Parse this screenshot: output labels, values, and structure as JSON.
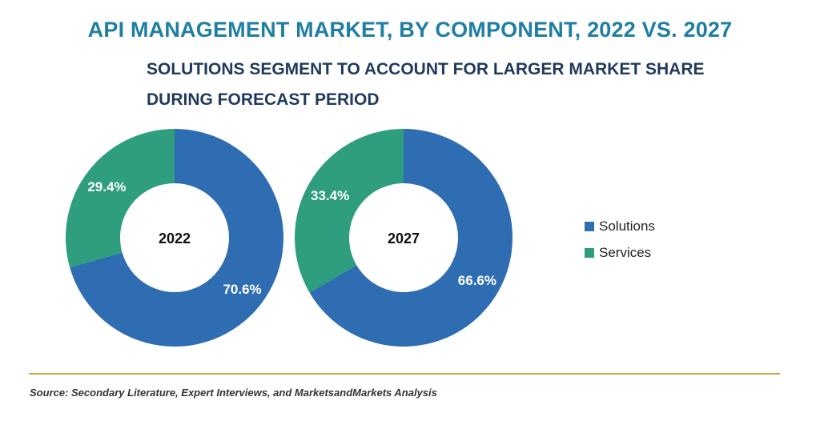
{
  "chart_data": {
    "type": "pie",
    "title": "API MANAGEMENT MARKET, BY COMPONENT, 2022 VS. 2027",
    "subtitle": "SOLUTIONS SEGMENT TO ACCOUNT FOR LARGER MARKET SHARE DURING FORECAST PERIOD",
    "categories": [
      "Solutions",
      "Services"
    ],
    "colors": {
      "Solutions": "#2f6db3",
      "Services": "#2f9e7e"
    },
    "legend_position": "right",
    "charts": [
      {
        "year": "2022",
        "values": [
          70.6,
          29.4
        ],
        "labels": [
          "70.6%",
          "29.4%"
        ]
      },
      {
        "year": "2027",
        "values": [
          66.6,
          33.4
        ],
        "labels": [
          "66.6%",
          "33.4%"
        ]
      }
    ]
  },
  "source": "Source: Secondary Literature, Expert Interviews, and MarketsandMarkets Analysis"
}
